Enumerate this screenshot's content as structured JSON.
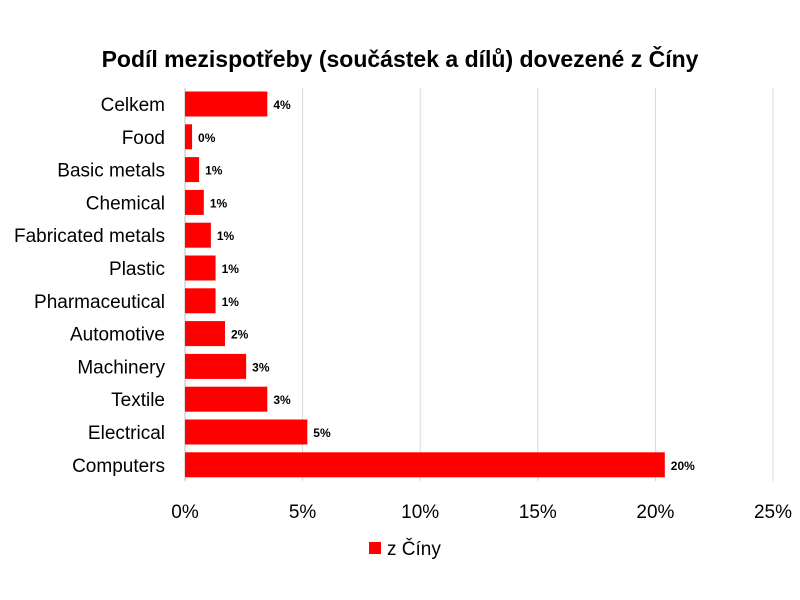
{
  "chart_data": {
    "type": "bar",
    "orientation": "horizontal",
    "title": "Podíl mezispotřeby (součástek a dílů) dovezené z Číny",
    "categories": [
      "Celkem",
      "Food",
      "Basic metals",
      "Chemical",
      "Fabricated metals",
      "Plastic",
      "Pharmaceutical",
      "Automotive",
      "Machinery",
      "Textile",
      "Electrical",
      "Computers"
    ],
    "series": [
      {
        "name": "z Číny",
        "values": [
          3.5,
          0.3,
          0.6,
          0.8,
          1.1,
          1.3,
          1.3,
          1.7,
          2.6,
          3.5,
          5.2,
          20.4
        ],
        "labels": [
          "4%",
          "0%",
          "1%",
          "1%",
          "1%",
          "1%",
          "1%",
          "2%",
          "3%",
          "3%",
          "5%",
          "20%"
        ]
      }
    ],
    "xlim": [
      0,
      25
    ],
    "xticks": [
      "0%",
      "5%",
      "10%",
      "15%",
      "20%",
      "25%"
    ],
    "grid": true,
    "legend_position": "bottom",
    "colors": {
      "bar": "#ff0000",
      "grid": "#d9d9d9"
    }
  }
}
